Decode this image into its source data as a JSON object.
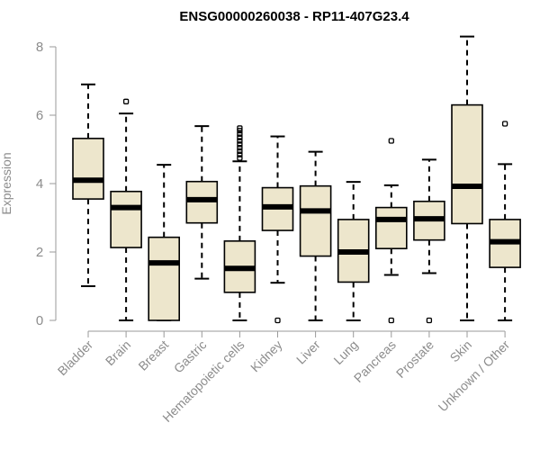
{
  "chart_data": {
    "type": "boxplot",
    "title": "ENSG00000260038 - RP11-407G23.4",
    "xlabel": "",
    "ylabel": "Expression",
    "ylim": [
      0,
      8
    ],
    "yticks": [
      0,
      2,
      4,
      6,
      8
    ],
    "categories": [
      "Bladder",
      "Brain",
      "Breast",
      "Gastric",
      "Hematopoietic cells",
      "Kidney",
      "Liver",
      "Lung",
      "Pancreas",
      "Prostate",
      "Skin",
      "Unknown / Other"
    ],
    "boxes": [
      {
        "name": "Bladder",
        "whisker_low": 1.0,
        "q1": 3.55,
        "median": 4.1,
        "q3": 5.32,
        "whisker_high": 6.9,
        "outliers": []
      },
      {
        "name": "Brain",
        "whisker_low": 0.0,
        "q1": 2.13,
        "median": 3.3,
        "q3": 3.77,
        "whisker_high": 6.05,
        "outliers": [
          6.4
        ]
      },
      {
        "name": "Breast",
        "whisker_low": 0.0,
        "q1": 0.0,
        "median": 1.68,
        "q3": 2.43,
        "whisker_high": 4.55,
        "outliers": []
      },
      {
        "name": "Gastric",
        "whisker_low": 1.22,
        "q1": 2.85,
        "median": 3.53,
        "q3": 4.06,
        "whisker_high": 5.68,
        "outliers": []
      },
      {
        "name": "Hematopoietic cells",
        "whisker_low": 0.0,
        "q1": 0.82,
        "median": 1.52,
        "q3": 2.32,
        "whisker_high": 4.65,
        "outliers": [
          4.75,
          4.85,
          4.95,
          5.05,
          5.15,
          5.25,
          5.35,
          5.45,
          5.55,
          5.62
        ]
      },
      {
        "name": "Kidney",
        "whisker_low": 1.1,
        "q1": 2.63,
        "median": 3.32,
        "q3": 3.88,
        "whisker_high": 5.38,
        "outliers": [
          0.0
        ]
      },
      {
        "name": "Liver",
        "whisker_low": 0.0,
        "q1": 1.88,
        "median": 3.2,
        "q3": 3.93,
        "whisker_high": 4.93,
        "outliers": []
      },
      {
        "name": "Lung",
        "whisker_low": 0.0,
        "q1": 1.12,
        "median": 2.0,
        "q3": 2.95,
        "whisker_high": 4.05,
        "outliers": []
      },
      {
        "name": "Pancreas",
        "whisker_low": 1.33,
        "q1": 2.1,
        "median": 2.95,
        "q3": 3.3,
        "whisker_high": 3.95,
        "outliers": [
          5.25,
          0.0
        ]
      },
      {
        "name": "Prostate",
        "whisker_low": 1.38,
        "q1": 2.35,
        "median": 2.97,
        "q3": 3.48,
        "whisker_high": 4.7,
        "outliers": [
          0.0
        ]
      },
      {
        "name": "Skin",
        "whisker_low": 0.0,
        "q1": 2.83,
        "median": 3.92,
        "q3": 6.3,
        "whisker_high": 8.3,
        "outliers": []
      },
      {
        "name": "Unknown / Other",
        "whisker_low": 0.0,
        "q1": 1.55,
        "median": 2.3,
        "q3": 2.95,
        "whisker_high": 4.57,
        "outliers": [
          5.75
        ]
      }
    ],
    "colors": {
      "box_fill": "#ede6cc",
      "box_stroke": "#000000",
      "median": "#000000",
      "axis": "#9a9a9a",
      "tick_label": "#8c8c8c",
      "title": "#000000"
    },
    "grid": false,
    "legend": "none"
  }
}
